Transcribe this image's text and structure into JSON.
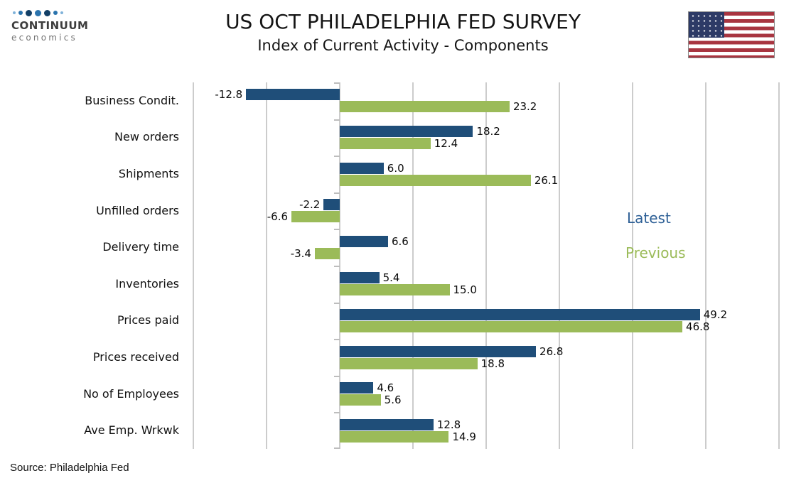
{
  "header": {
    "logo": {
      "brand": "CONTINUUM",
      "sub": "economics"
    },
    "title": "US OCT PHILADELPHIA FED SURVEY",
    "subtitle": "Index of Current Activity - Components"
  },
  "colors": {
    "latest": "#1f4e79",
    "previous": "#9bbb59",
    "legend_latest": "#2e6096",
    "legend_previous": "#9bbb59",
    "gridline": "#cccccc"
  },
  "source": "Source: Philadelphia Fed",
  "chart_data": {
    "type": "bar",
    "orientation": "horizontal",
    "title": "US OCT PHILADELPHIA FED SURVEY",
    "subtitle": "Index of Current Activity - Components",
    "categories": [
      "Business Condit.",
      "New orders",
      "Shipments",
      "Unfilled orders",
      "Delivery time",
      "Inventories",
      "Prices paid",
      "Prices received",
      "No of Employees",
      "Ave Emp. Wrkwk"
    ],
    "series": [
      {
        "name": "Latest",
        "color": "#1f4e79",
        "values": [
          -12.8,
          18.2,
          6.0,
          -2.2,
          6.6,
          5.4,
          49.2,
          26.8,
          4.6,
          12.8
        ]
      },
      {
        "name": "Previous",
        "color": "#9bbb59",
        "values": [
          23.2,
          12.4,
          26.1,
          -6.6,
          -3.4,
          15.0,
          46.8,
          18.8,
          5.6,
          14.9
        ]
      }
    ],
    "xlim": [
      -20,
      60
    ],
    "grid_step": 10,
    "grid": true,
    "legend_position": "right",
    "value_label_decimals": 1
  }
}
